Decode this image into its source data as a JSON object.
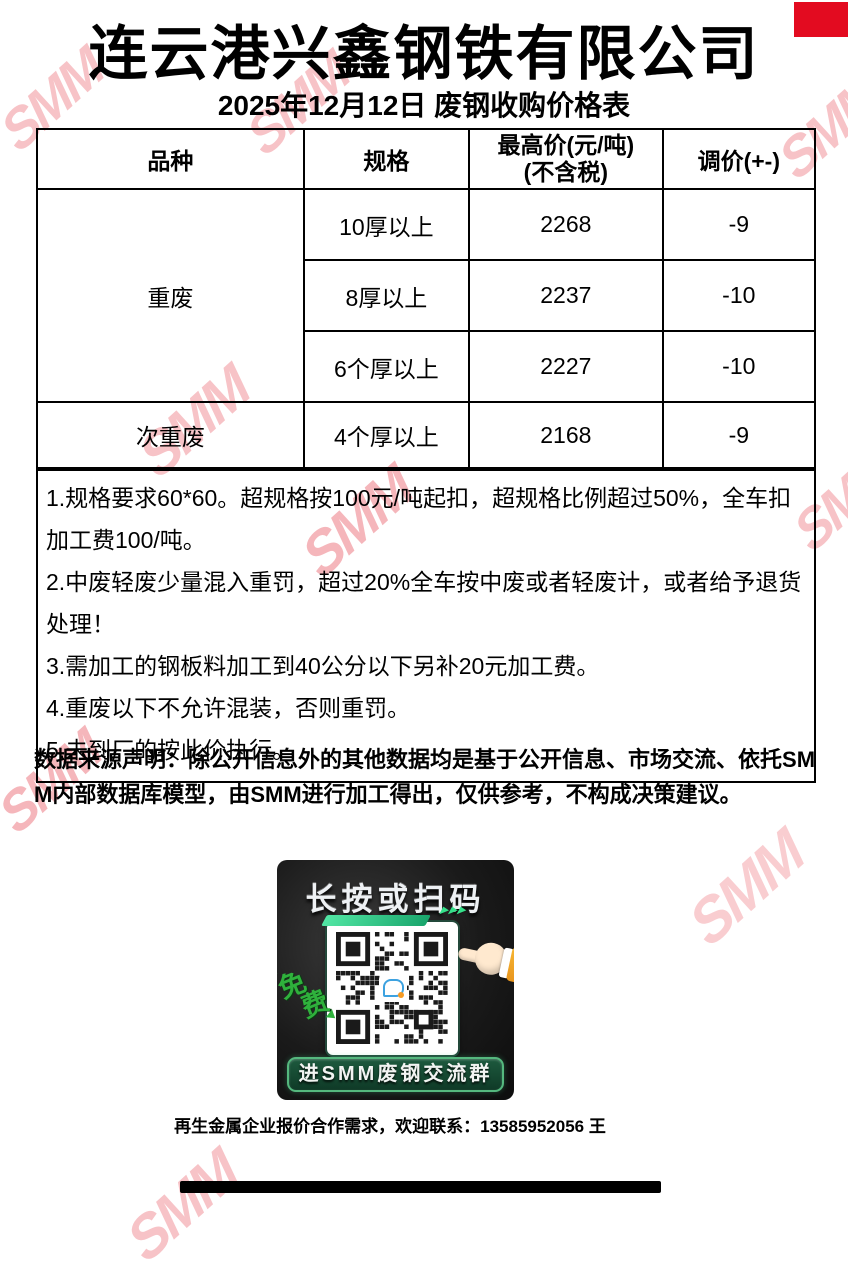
{
  "page": {
    "title": "连云港兴鑫钢铁有限公司",
    "subtitle": "2025年12月12日 废钢收购价格表"
  },
  "table": {
    "headers": {
      "variety": "品种",
      "spec": "规格",
      "price_line1": "最高价(元/吨)",
      "price_line2": "(不含税)",
      "adjust": "调价(+-)"
    },
    "rows": [
      {
        "variety": "重废",
        "spec": "10厚以上",
        "price": "2268",
        "adjust": "-9"
      },
      {
        "variety": "",
        "spec": "8厚以上",
        "price": "2237",
        "adjust": "-10"
      },
      {
        "variety": "",
        "spec": "6个厚以上",
        "price": "2227",
        "adjust": "-10"
      },
      {
        "variety": "次重废",
        "spec": "4个厚以上",
        "price": "2168",
        "adjust": "-9"
      }
    ]
  },
  "notes": [
    "1.规格要求60*60。超规格按100元/吨起扣，超规格比例超过50%，全车扣加工费100/吨。",
    "2.中废轻废少量混入重罚，超过20%全车按中废或者轻废计，或者给予退货处理！",
    "3.需加工的钢板料加工到40公分以下另补20元加工费。",
    "4.重废以下不允许混装，否则重罚。",
    "5.未到厂的按此价执行。"
  ],
  "disclaimer": {
    "label": "数据来源声明：",
    "text": "除公开信息外的其他数据均是基于公开信息、市场交流、依托SMM内部数据库模型，由SMM进行加工得出，仅供参考，不构成决策建议。"
  },
  "qr": {
    "title": "长按或扫码",
    "free_label_char1": "免",
    "free_label_char2": "费",
    "button": "进SMM废钢交流群"
  },
  "contact": "再生金属企业报价合作需求，欢迎联系：13585952056 王",
  "watermark": {
    "text": "SMM",
    "color": "#f7c3c7"
  },
  "colors": {
    "corner_block_red": "#e30b20",
    "accent_green": "#2fb13c",
    "qr_teal": "#19a56c",
    "button_border_green": "#55b87e"
  }
}
